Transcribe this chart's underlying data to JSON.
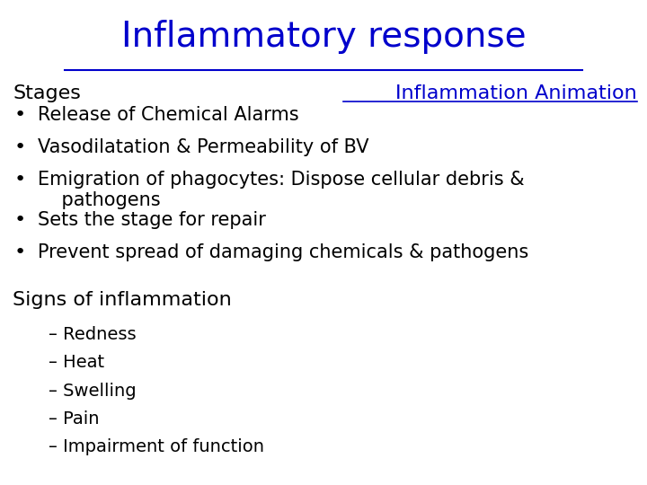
{
  "title": "Inflammatory response",
  "title_color": "#0000CC",
  "title_fontsize": 28,
  "title_font": "Comic Sans MS",
  "background_color": "#FFFFFF",
  "stages_label": "Stages",
  "stages_fontsize": 16,
  "stages_font": "Comic Sans MS",
  "animation_label": "Inflammation Animation",
  "animation_color": "#0000CC",
  "animation_fontsize": 16,
  "animation_font": "Comic Sans MS",
  "bullet_items": [
    "Release of Chemical Alarms",
    "Vasodilatation & Permeability of BV",
    "Emigration of phagocytes: Dispose cellular debris &\n    pathogens",
    "Sets the stage for repair",
    "Prevent spread of damaging chemicals & pathogens"
  ],
  "bullet_fontsize": 15,
  "bullet_font": "Comic Sans MS",
  "bullet_color": "#000000",
  "signs_header": "Signs of inflammation",
  "signs_fontsize": 16,
  "signs_font": "Comic Sans MS",
  "signs_items": [
    "Redness",
    "Heat",
    "Swelling",
    "Pain",
    "Impairment of function"
  ],
  "signs_fontsize_items": 14,
  "signs_font_items": "Comic Sans MS"
}
